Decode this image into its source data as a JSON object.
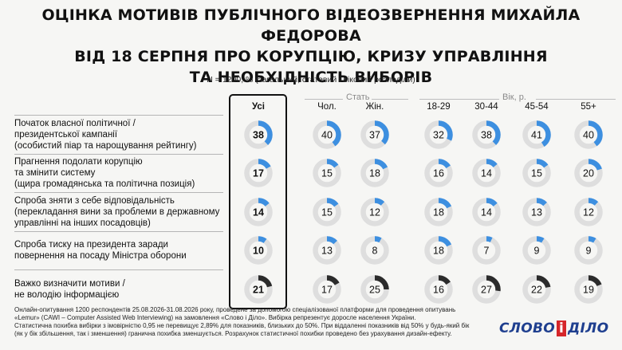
{
  "title_lines": [
    "ОЦІНКА МОТИВІВ ПУБЛІЧНОГО ВІДЕОЗВЕРНЕННЯ МИХАЙЛА ФЕДОРОВА",
    "ВІД 18 СЕРПНЯ ПРО КОРУПЦІЮ, КРИЗУ УПРАВЛІННЯ",
    "ТА НЕОБХІДНІСТЬ ВИБОРІВ"
  ],
  "subtitle": "N = 1200, % (загальний, статевий і віковий розподіли)",
  "group_labels": {
    "sex": "Стать",
    "age": "Вік, р."
  },
  "chart_data": {
    "type": "donut-table",
    "columns": [
      "Усі",
      "Чол.",
      "Жін.",
      "18-29",
      "30-44",
      "45-54",
      "55+"
    ],
    "rows": [
      {
        "label_lines": [
          "Початок власної політичної /",
          "президентської кампанії",
          "(особистий піар та нарощування рейтингу)"
        ],
        "values": [
          38,
          40,
          37,
          32,
          38,
          41,
          40
        ]
      },
      {
        "label_lines": [
          "Прагнення подолати корупцію",
          "та змінити систему",
          "(щира громадянська та політична позиція)"
        ],
        "values": [
          17,
          15,
          18,
          16,
          14,
          15,
          20
        ]
      },
      {
        "label_lines": [
          "Спроба зняти з себе відповідальність",
          "(перекладання вини за проблеми в державному",
          "управлінні на інших посадовців)"
        ],
        "values": [
          14,
          15,
          12,
          18,
          14,
          13,
          12
        ]
      },
      {
        "label_lines": [
          "Спроба тиску на президента заради",
          "повернення на посаду Міністра оборони"
        ],
        "values": [
          10,
          13,
          8,
          18,
          7,
          9,
          9
        ]
      },
      {
        "label_lines": [
          "Важко визначити мотиви /",
          "не володію інформацією"
        ],
        "values": [
          21,
          17,
          25,
          16,
          27,
          22,
          19
        ]
      }
    ],
    "arc_colors": [
      "#3d8fe0",
      "#3d8fe0",
      "#3d8fe0",
      "#3d8fe0",
      "#2b2b2b"
    ],
    "track_color": "#dedede"
  },
  "footer_lines": [
    "Онлайн-опитування 1200 респондентів 25.08.2026-31.08.2026 року, проведене за допомогою спеціалізованої платформи для проведення опитувань",
    "«Lemur» (CAWI – Computer Assisted Web Interviewing) на замовлення «Слово і Діло». Вибірка репрезентує доросле населення України.",
    "Статистична похибка вибірки з імовірністю 0,95 не перевищує 2,89% для показників, близьких до 50%. При віддаленні показників від 50% у будь-який бік",
    "(як у бік збільшення, так і зменшення) гранична похибка зменшується. Розрахунок статистичної похибки проведено без урахування дизайн-ефекту."
  ],
  "logo": {
    "left": "СЛОВО",
    "amp": "і",
    "right": "ДІЛО"
  }
}
